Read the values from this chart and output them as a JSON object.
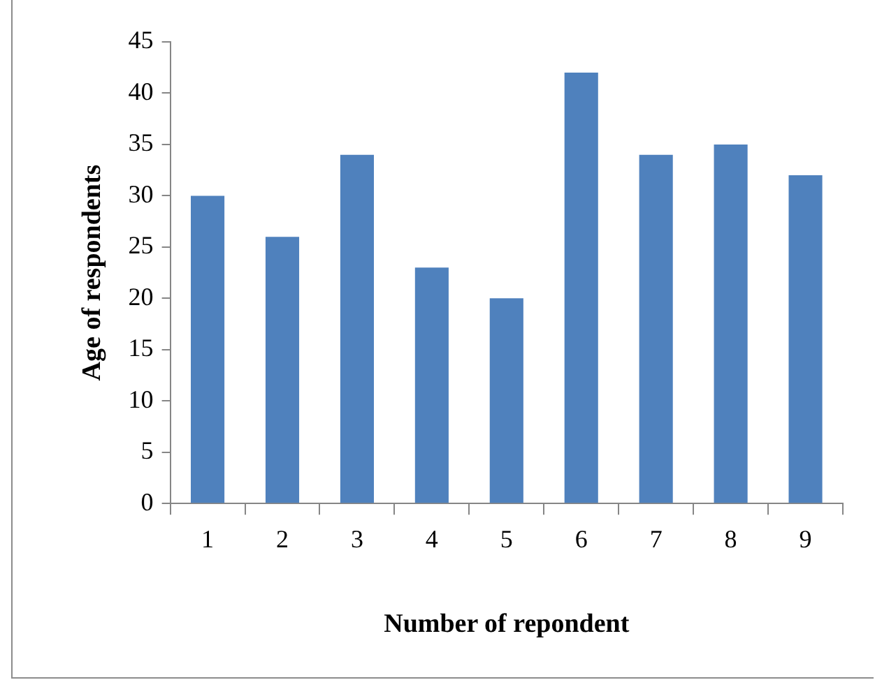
{
  "chart_data": {
    "type": "bar",
    "xlabel": "Number of repondent",
    "ylabel": "Age of respondents",
    "categories": [
      "1",
      "2",
      "3",
      "4",
      "5",
      "6",
      "7",
      "8",
      "9"
    ],
    "values": [
      30,
      26,
      34,
      23,
      20,
      42,
      34,
      35,
      32
    ],
    "color": "#4f81bd",
    "ylim": [
      0,
      45
    ],
    "yticks": [
      0,
      5,
      10,
      15,
      20,
      25,
      30,
      35,
      40,
      45
    ],
    "legend": false
  }
}
